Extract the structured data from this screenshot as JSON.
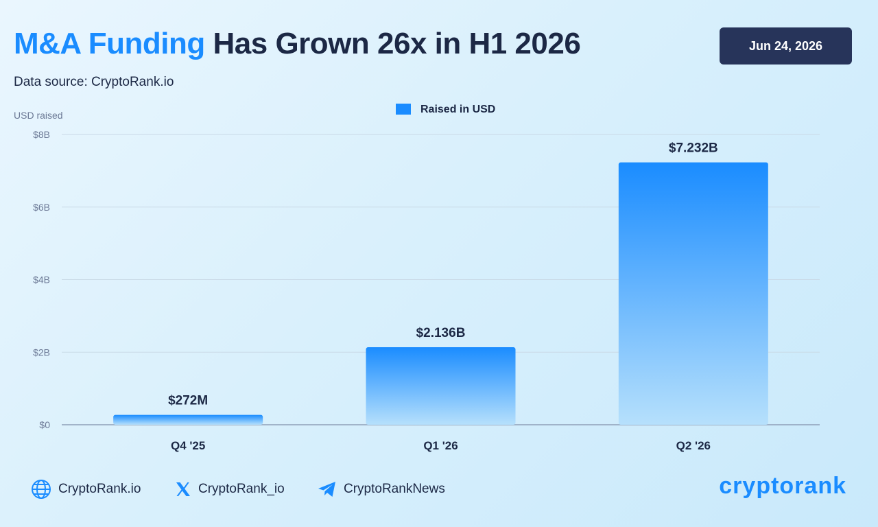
{
  "header": {
    "title_highlight": "M&A Funding",
    "title_rest": " Has Grown 26x in H1 2026",
    "subtitle": "Data source: CryptoRank.io",
    "date": "Jun 24, 2026"
  },
  "chart_data": {
    "type": "bar",
    "ylabel": "USD raised",
    "categories": [
      "Q4 '25",
      "Q1 '26",
      "Q2 '26"
    ],
    "series": [
      {
        "name": "Raised in USD",
        "values": [
          0.272,
          2.136,
          7.232
        ],
        "labels": [
          "$272M",
          "$2.136B",
          "$7.232B"
        ]
      }
    ],
    "ylim": [
      0,
      8
    ],
    "yticks": [
      0,
      2,
      4,
      6,
      8
    ],
    "ytick_labels": [
      "$0",
      "$2B",
      "$4B",
      "$6B",
      "$8B"
    ],
    "grid": true,
    "legend": "top-center",
    "colors": {
      "bar_top": "#1a8cff",
      "bar_bottom": "#b6e0fc",
      "legend_swatch": "#1a8cff"
    }
  },
  "footer": {
    "links": [
      {
        "icon": "globe-icon",
        "label": "CryptoRank.io"
      },
      {
        "icon": "x-icon",
        "label": "CryptoRank_io"
      },
      {
        "icon": "telegram-icon",
        "label": "CryptoRankNews"
      }
    ],
    "logo": "cryptorank"
  }
}
